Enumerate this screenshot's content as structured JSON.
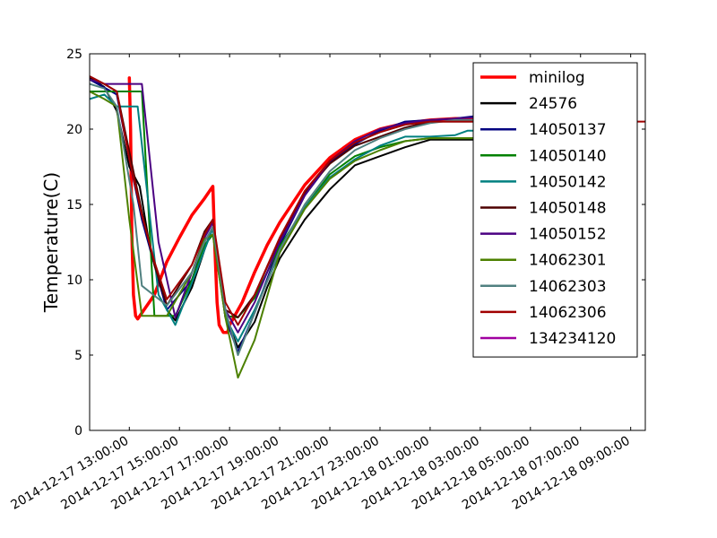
{
  "chart_data": {
    "type": "line",
    "title": "",
    "xlabel": "",
    "ylabel": "Temperature(C)",
    "ylim": [
      0,
      25
    ],
    "xlim": [
      "2014-12-17 11:25:00",
      "2014-12-18 09:35:00"
    ],
    "grid": false,
    "legend_position": "top-right",
    "y_ticks": [
      0,
      5,
      10,
      15,
      20,
      25
    ],
    "x_ticks": [
      "2014-12-17 13:00:00",
      "2014-12-17 15:00:00",
      "2014-12-17 17:00:00",
      "2014-12-17 19:00:00",
      "2014-12-17 21:00:00",
      "2014-12-17 23:00:00",
      "2014-12-18 01:00:00",
      "2014-12-18 03:00:00",
      "2014-12-18 05:00:00",
      "2014-12-18 07:00:00",
      "2014-12-18 09:00:00"
    ],
    "series": [
      {
        "name": "minilog",
        "color": "#ff0000",
        "width": 3.5,
        "points": [
          [
            "2014-12-17 13:00",
            23.4
          ],
          [
            "2014-12-17 13:03",
            20.0
          ],
          [
            "2014-12-17 13:06",
            13.0
          ],
          [
            "2014-12-17 13:10",
            9.0
          ],
          [
            "2014-12-17 13:15",
            7.6
          ],
          [
            "2014-12-17 13:20",
            7.4
          ],
          [
            "2014-12-17 13:30",
            7.8
          ],
          [
            "2014-12-17 14:00",
            9.0
          ],
          [
            "2014-12-17 14:30",
            11.2
          ],
          [
            "2014-12-17 15:00",
            12.8
          ],
          [
            "2014-12-17 15:30",
            14.3
          ],
          [
            "2014-12-17 16:00",
            15.4
          ],
          [
            "2014-12-17 16:20",
            16.2
          ],
          [
            "2014-12-17 16:25",
            12.0
          ],
          [
            "2014-12-17 16:30",
            8.5
          ],
          [
            "2014-12-17 16:35",
            7.0
          ],
          [
            "2014-12-17 16:45",
            6.5
          ],
          [
            "2014-12-17 16:55",
            6.5
          ],
          [
            "2014-12-17 17:00",
            7.0
          ],
          [
            "2014-12-17 17:30",
            8.5
          ],
          [
            "2014-12-17 18:00",
            10.5
          ],
          [
            "2014-12-17 18:30",
            12.3
          ],
          [
            "2014-12-17 19:00",
            13.8
          ],
          [
            "2014-12-17 20:00",
            16.3
          ],
          [
            "2014-12-17 21:00",
            18.1
          ],
          [
            "2014-12-17 22:00",
            19.3
          ],
          [
            "2014-12-17 23:00",
            20.0
          ],
          [
            "2014-12-18 00:00",
            20.4
          ],
          [
            "2014-12-18 01:00",
            20.6
          ],
          [
            "2014-12-18 02:00",
            20.7
          ],
          [
            "2014-12-18 03:00",
            20.7
          ]
        ]
      },
      {
        "name": "24576",
        "color": "#000000",
        "width": 2,
        "points": [
          [
            "2014-12-17 11:25",
            23.4
          ],
          [
            "2014-12-17 12:00",
            22.8
          ],
          [
            "2014-12-17 12:30",
            21.2
          ],
          [
            "2014-12-17 13:00",
            17.5
          ],
          [
            "2014-12-17 13:25",
            16.2
          ],
          [
            "2014-12-17 13:50",
            12.0
          ],
          [
            "2014-12-17 14:30",
            8.0
          ],
          [
            "2014-12-17 14:50",
            7.3
          ],
          [
            "2014-12-17 15:30",
            9.5
          ],
          [
            "2014-12-17 16:00",
            12.0
          ],
          [
            "2014-12-17 16:20",
            13.5
          ],
          [
            "2014-12-17 16:50",
            7.5
          ],
          [
            "2014-12-17 17:20",
            5.5
          ],
          [
            "2014-12-17 18:00",
            7.2
          ],
          [
            "2014-12-17 18:30",
            9.5
          ],
          [
            "2014-12-17 19:00",
            11.4
          ],
          [
            "2014-12-17 20:00",
            14.0
          ],
          [
            "2014-12-17 21:00",
            16.0
          ],
          [
            "2014-12-17 22:00",
            17.6
          ],
          [
            "2014-12-17 23:00",
            18.2
          ],
          [
            "2014-12-18 00:00",
            18.8
          ],
          [
            "2014-12-18 01:00",
            19.3
          ],
          [
            "2014-12-18 02:00",
            19.3
          ],
          [
            "2014-12-18 03:30",
            19.3
          ]
        ]
      },
      {
        "name": "14050137",
        "color": "#000080",
        "width": 2,
        "points": [
          [
            "2014-12-17 11:25",
            23.3
          ],
          [
            "2014-12-17 12:30",
            22.3
          ],
          [
            "2014-12-17 13:00",
            18.0
          ],
          [
            "2014-12-17 13:30",
            14.0
          ],
          [
            "2014-12-17 14:00",
            11.0
          ],
          [
            "2014-12-17 14:30",
            8.0
          ],
          [
            "2014-12-17 15:30",
            10.0
          ],
          [
            "2014-12-17 16:00",
            12.5
          ],
          [
            "2014-12-17 16:20",
            13.5
          ],
          [
            "2014-12-17 16:50",
            7.5
          ],
          [
            "2014-12-17 17:20",
            5.2
          ],
          [
            "2014-12-17 18:00",
            7.8
          ],
          [
            "2014-12-17 19:00",
            12.3
          ],
          [
            "2014-12-17 20:00",
            15.6
          ],
          [
            "2014-12-17 21:00",
            17.8
          ],
          [
            "2014-12-17 22:00",
            19.0
          ],
          [
            "2014-12-17 23:00",
            19.9
          ],
          [
            "2014-12-18 00:00",
            20.5
          ],
          [
            "2014-12-18 01:00",
            20.6
          ],
          [
            "2014-12-18 02:00",
            20.7
          ],
          [
            "2014-12-18 03:00",
            20.9
          ]
        ]
      },
      {
        "name": "14050140",
        "color": "#008000",
        "width": 2,
        "points": [
          [
            "2014-12-17 11:25",
            22.5
          ],
          [
            "2014-12-17 12:00",
            22.5
          ],
          [
            "2014-12-17 13:30",
            22.5
          ],
          [
            "2014-12-17 14:00",
            7.6
          ],
          [
            "2014-12-17 14:50",
            7.6
          ],
          [
            "2014-12-17 15:30",
            10.0
          ],
          [
            "2014-12-17 16:00",
            12.3
          ],
          [
            "2014-12-17 16:20",
            13.0
          ],
          [
            "2014-12-17 16:50",
            7.6
          ],
          [
            "2014-12-17 17:20",
            7.5
          ],
          [
            "2014-12-17 18:00",
            8.8
          ],
          [
            "2014-12-17 19:00",
            12.2
          ],
          [
            "2014-12-17 20:00",
            14.8
          ],
          [
            "2014-12-17 21:00",
            17.0
          ],
          [
            "2014-12-17 22:00",
            18.2
          ],
          [
            "2014-12-17 23:00",
            18.8
          ],
          [
            "2014-12-18 00:00",
            19.2
          ],
          [
            "2014-12-18 01:00",
            19.4
          ],
          [
            "2014-12-18 03:00",
            19.4
          ]
        ]
      },
      {
        "name": "14050142",
        "color": "#008080",
        "width": 2,
        "points": [
          [
            "2014-12-17 11:25",
            22.0
          ],
          [
            "2014-12-17 12:00",
            22.3
          ],
          [
            "2014-12-17 12:30",
            21.5
          ],
          [
            "2014-12-17 13:20",
            21.5
          ],
          [
            "2014-12-17 14:10",
            9.0
          ],
          [
            "2014-12-17 14:50",
            7.0
          ],
          [
            "2014-12-17 15:30",
            9.8
          ],
          [
            "2014-12-17 16:00",
            12.0
          ],
          [
            "2014-12-17 16:20",
            13.4
          ],
          [
            "2014-12-17 16:50",
            7.5
          ],
          [
            "2014-12-17 17:20",
            5.9
          ],
          [
            "2014-12-17 18:00",
            8.0
          ],
          [
            "2014-12-17 19:00",
            11.8
          ],
          [
            "2014-12-17 20:00",
            14.8
          ],
          [
            "2014-12-17 21:00",
            16.8
          ],
          [
            "2014-12-17 22:00",
            18.0
          ],
          [
            "2014-12-17 23:00",
            18.9
          ],
          [
            "2014-12-18 00:00",
            19.5
          ],
          [
            "2014-12-18 01:00",
            19.5
          ],
          [
            "2014-12-18 02:00",
            19.6
          ],
          [
            "2014-12-18 02:30",
            19.9
          ],
          [
            "2014-12-18 03:10",
            19.9
          ]
        ]
      },
      {
        "name": "14050148",
        "color": "#4d0000",
        "width": 2,
        "points": [
          [
            "2014-12-17 11:25",
            23.5
          ],
          [
            "2014-12-17 12:00",
            23.0
          ],
          [
            "2014-12-17 12:30",
            22.5
          ],
          [
            "2014-12-17 13:00",
            18.5
          ],
          [
            "2014-12-17 13:30",
            14.5
          ],
          [
            "2014-12-17 14:00",
            11.0
          ],
          [
            "2014-12-17 14:30",
            8.3
          ],
          [
            "2014-12-17 15:30",
            11.0
          ],
          [
            "2014-12-17 16:00",
            13.2
          ],
          [
            "2014-12-17 16:20",
            14.0
          ],
          [
            "2014-12-17 16:50",
            8.0
          ],
          [
            "2014-12-17 17:20",
            7.5
          ],
          [
            "2014-12-17 18:00",
            9.0
          ],
          [
            "2014-12-17 19:00",
            12.7
          ],
          [
            "2014-12-17 20:00",
            15.8
          ],
          [
            "2014-12-17 21:00",
            17.7
          ],
          [
            "2014-12-17 22:00",
            18.9
          ],
          [
            "2014-12-17 23:00",
            19.5
          ],
          [
            "2014-12-18 00:00",
            20.1
          ],
          [
            "2014-12-18 01:00",
            20.5
          ],
          [
            "2014-12-18 02:00",
            20.5
          ],
          [
            "2014-12-18 03:00",
            20.5
          ]
        ]
      },
      {
        "name": "14050152",
        "color": "#4b0082",
        "width": 2,
        "points": [
          [
            "2014-12-17 11:25",
            23.3
          ],
          [
            "2014-12-17 12:00",
            23.0
          ],
          [
            "2014-12-17 13:30",
            23.0
          ],
          [
            "2014-12-17 14:10",
            12.5
          ],
          [
            "2014-12-17 14:50",
            7.5
          ],
          [
            "2014-12-17 15:30",
            10.5
          ],
          [
            "2014-12-17 16:00",
            12.8
          ],
          [
            "2014-12-17 16:20",
            13.8
          ],
          [
            "2014-12-17 16:50",
            8.0
          ],
          [
            "2014-12-17 17:20",
            6.5
          ],
          [
            "2014-12-17 18:00",
            8.5
          ],
          [
            "2014-12-17 19:00",
            12.5
          ],
          [
            "2014-12-17 20:00",
            15.6
          ],
          [
            "2014-12-17 21:00",
            17.9
          ],
          [
            "2014-12-17 22:00",
            19.2
          ],
          [
            "2014-12-17 23:00",
            20.0
          ],
          [
            "2014-12-18 00:00",
            20.4
          ],
          [
            "2014-12-18 01:00",
            20.6
          ],
          [
            "2014-12-18 02:00",
            20.7
          ],
          [
            "2014-12-18 03:00",
            20.8
          ]
        ]
      },
      {
        "name": "14062301",
        "color": "#4c8000",
        "width": 2,
        "points": [
          [
            "2014-12-17 11:25",
            22.5
          ],
          [
            "2014-12-17 12:00",
            22.0
          ],
          [
            "2014-12-17 12:30",
            21.5
          ],
          [
            "2014-12-17 13:00",
            14.0
          ],
          [
            "2014-12-17 13:30",
            7.6
          ],
          [
            "2014-12-17 14:30",
            7.6
          ],
          [
            "2014-12-17 15:30",
            10.5
          ],
          [
            "2014-12-17 16:00",
            12.7
          ],
          [
            "2014-12-17 16:20",
            13.0
          ],
          [
            "2014-12-17 16:50",
            7.5
          ],
          [
            "2014-12-17 17:20",
            3.5
          ],
          [
            "2014-12-17 18:00",
            6.0
          ],
          [
            "2014-12-17 19:00",
            11.8
          ],
          [
            "2014-12-17 20:00",
            14.7
          ],
          [
            "2014-12-17 21:00",
            16.7
          ],
          [
            "2014-12-17 22:00",
            17.9
          ],
          [
            "2014-12-17 23:00",
            18.6
          ],
          [
            "2014-12-18 00:00",
            19.2
          ],
          [
            "2014-12-18 01:00",
            19.4
          ],
          [
            "2014-12-18 03:00",
            19.4
          ]
        ]
      },
      {
        "name": "14062303",
        "color": "#508080",
        "width": 2,
        "points": [
          [
            "2014-12-17 11:25",
            23.0
          ],
          [
            "2014-12-17 12:00",
            22.7
          ],
          [
            "2014-12-17 12:30",
            21.5
          ],
          [
            "2014-12-17 13:10",
            15.0
          ],
          [
            "2014-12-17 13:30",
            9.6
          ],
          [
            "2014-12-17 14:30",
            8.3
          ],
          [
            "2014-12-17 15:30",
            10.5
          ],
          [
            "2014-12-17 16:00",
            12.5
          ],
          [
            "2014-12-17 16:20",
            13.5
          ],
          [
            "2014-12-17 16:50",
            8.0
          ],
          [
            "2014-12-17 17:20",
            5.0
          ],
          [
            "2014-12-17 18:00",
            7.8
          ],
          [
            "2014-12-17 19:00",
            12.0
          ],
          [
            "2014-12-17 20:00",
            15.0
          ],
          [
            "2014-12-17 21:00",
            17.2
          ],
          [
            "2014-12-17 22:00",
            18.6
          ],
          [
            "2014-12-17 23:00",
            19.4
          ],
          [
            "2014-12-18 00:00",
            20.0
          ],
          [
            "2014-12-18 01:00",
            20.4
          ],
          [
            "2014-12-18 02:00",
            20.6
          ],
          [
            "2014-12-18 03:00",
            20.6
          ]
        ]
      },
      {
        "name": "14062306",
        "color": "#a00000",
        "width": 2,
        "points": [
          [
            "2014-12-17 11:25",
            23.5
          ],
          [
            "2014-12-17 12:00",
            23.0
          ],
          [
            "2014-12-17 12:30",
            22.5
          ],
          [
            "2014-12-17 13:00",
            18.0
          ],
          [
            "2014-12-17 13:30",
            14.3
          ],
          [
            "2014-12-17 14:00",
            11.2
          ],
          [
            "2014-12-17 14:30",
            8.7
          ],
          [
            "2014-12-17 15:30",
            11.0
          ],
          [
            "2014-12-17 16:00",
            13.0
          ],
          [
            "2014-12-17 16:20",
            14.0
          ],
          [
            "2014-12-17 16:50",
            8.5
          ],
          [
            "2014-12-17 17:20",
            7.0
          ],
          [
            "2014-12-17 18:00",
            9.0
          ],
          [
            "2014-12-17 19:00",
            12.8
          ],
          [
            "2014-12-17 20:00",
            15.9
          ],
          [
            "2014-12-17 21:00",
            17.9
          ],
          [
            "2014-12-17 22:00",
            19.1
          ],
          [
            "2014-12-17 23:00",
            19.8
          ],
          [
            "2014-12-18 00:00",
            20.3
          ],
          [
            "2014-12-18 01:00",
            20.5
          ],
          [
            "2014-12-18 08:30",
            20.5
          ],
          [
            "2014-12-18 09:35",
            20.5
          ]
        ]
      },
      {
        "name": "134234120",
        "color": "#a000a0",
        "width": 2,
        "points": []
      }
    ]
  }
}
